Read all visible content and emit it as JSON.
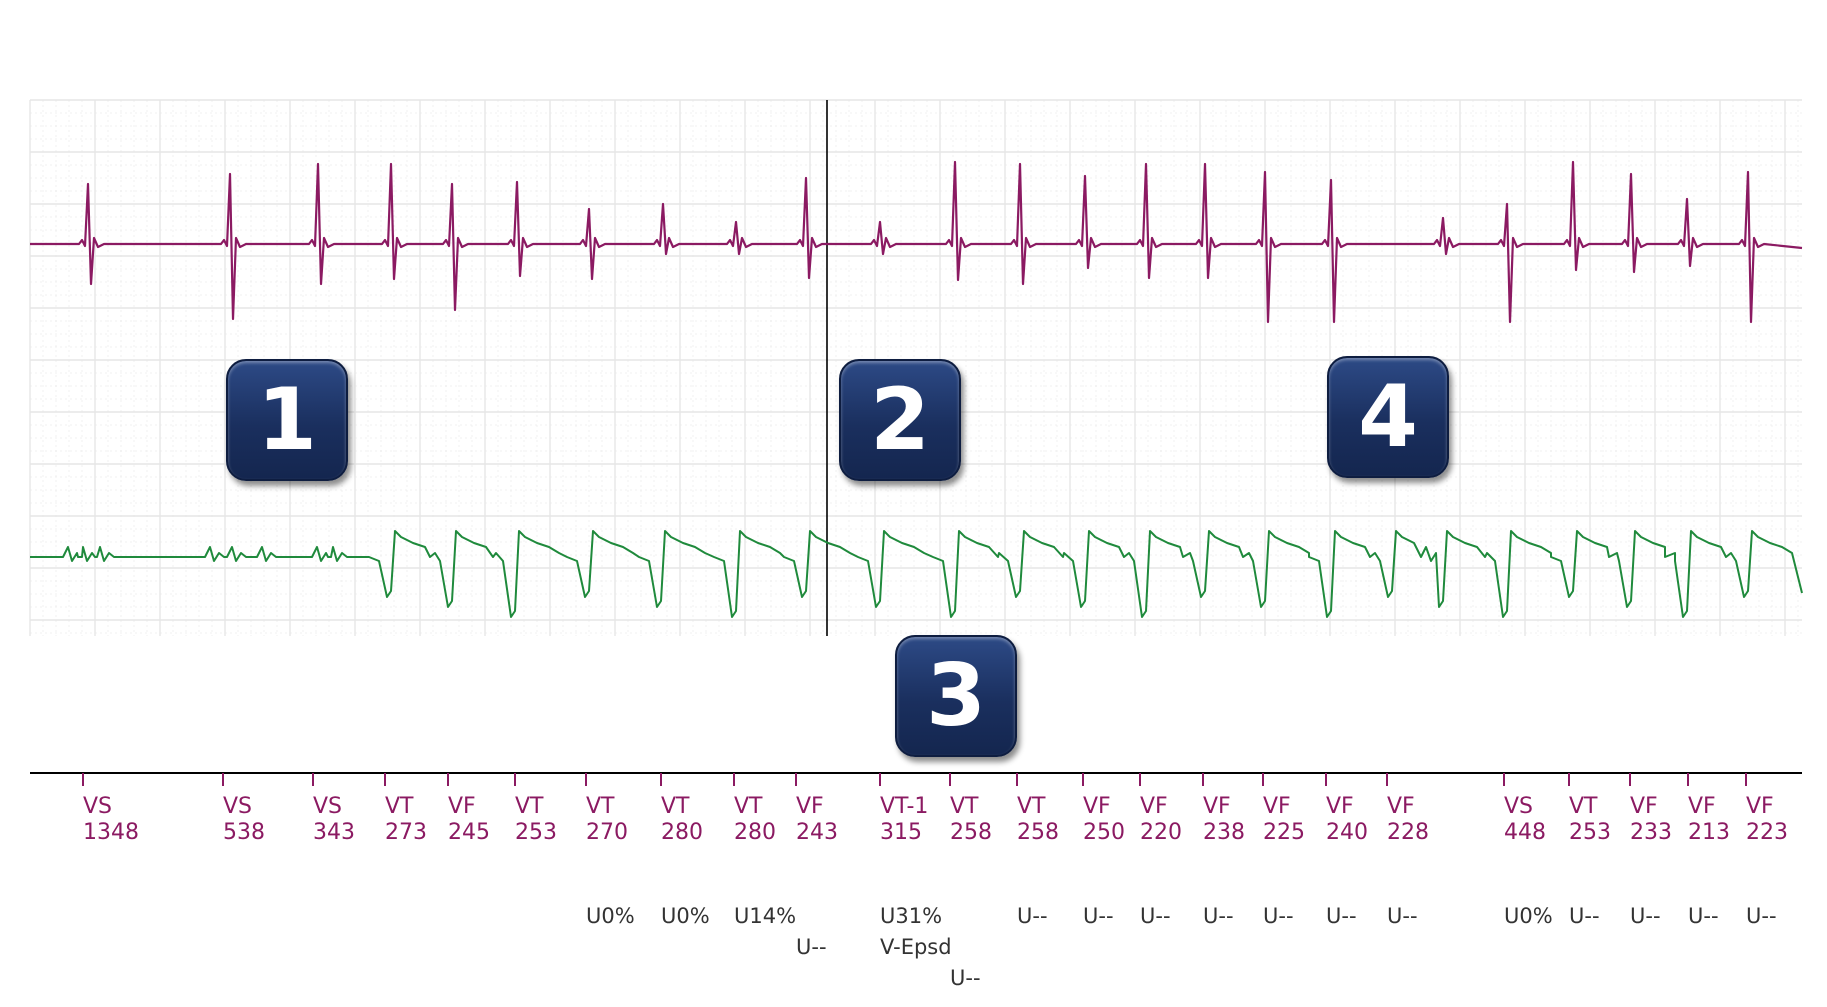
{
  "colors": {
    "ventricular_trace": "#8b1a62",
    "ventricular_trace_light": "#cc6fa8",
    "atrial_trace": "#1f8a3c",
    "marker_text": "#8b1a62",
    "annotation_text": "#333333",
    "badge": "#1f3566",
    "grid": "#e6e6e6"
  },
  "badges": [
    "1",
    "2",
    "3",
    "4"
  ],
  "markers": [
    {
      "label": "VS",
      "value": "1348"
    },
    {
      "label": "VS",
      "value": "538"
    },
    {
      "label": "VS",
      "value": "343"
    },
    {
      "label": "VT",
      "value": "273"
    },
    {
      "label": "VF",
      "value": "245"
    },
    {
      "label": "VT",
      "value": "253"
    },
    {
      "label": "VT",
      "value": "270",
      "notes": [
        "U0%"
      ]
    },
    {
      "label": "VT",
      "value": "280",
      "notes": [
        "U0%"
      ]
    },
    {
      "label": "VT",
      "value": "280",
      "notes": [
        "U14%"
      ]
    },
    {
      "label": "VF",
      "value": "243",
      "notes": [
        "",
        "U--"
      ]
    },
    {
      "label": "VT-1",
      "value": "315",
      "notes": [
        "U31%",
        "V-Epsd"
      ]
    },
    {
      "label": "VT",
      "value": "258",
      "notes": [
        "",
        "",
        "U--"
      ]
    },
    {
      "label": "VT",
      "value": "258",
      "notes": [
        "U--"
      ]
    },
    {
      "label": "VF",
      "value": "250",
      "notes": [
        "U--"
      ]
    },
    {
      "label": "VF",
      "value": "220",
      "notes": [
        "U--"
      ]
    },
    {
      "label": "VF",
      "value": "238",
      "notes": [
        "U--"
      ]
    },
    {
      "label": "VF",
      "value": "225",
      "notes": [
        "U--"
      ]
    },
    {
      "label": "VF",
      "value": "240",
      "notes": [
        "U--"
      ]
    },
    {
      "label": "VF",
      "value": "228",
      "notes": [
        "U--"
      ]
    },
    {
      "label": "VS",
      "value": "448",
      "notes": [
        "U0%"
      ]
    },
    {
      "label": "VT",
      "value": "253",
      "notes": [
        "U--"
      ]
    },
    {
      "label": "VF",
      "value": "233",
      "notes": [
        "U--"
      ]
    },
    {
      "label": "VF",
      "value": "213",
      "notes": [
        "U--"
      ]
    },
    {
      "label": "VF",
      "value": "223",
      "notes": [
        "U--"
      ]
    }
  ]
}
